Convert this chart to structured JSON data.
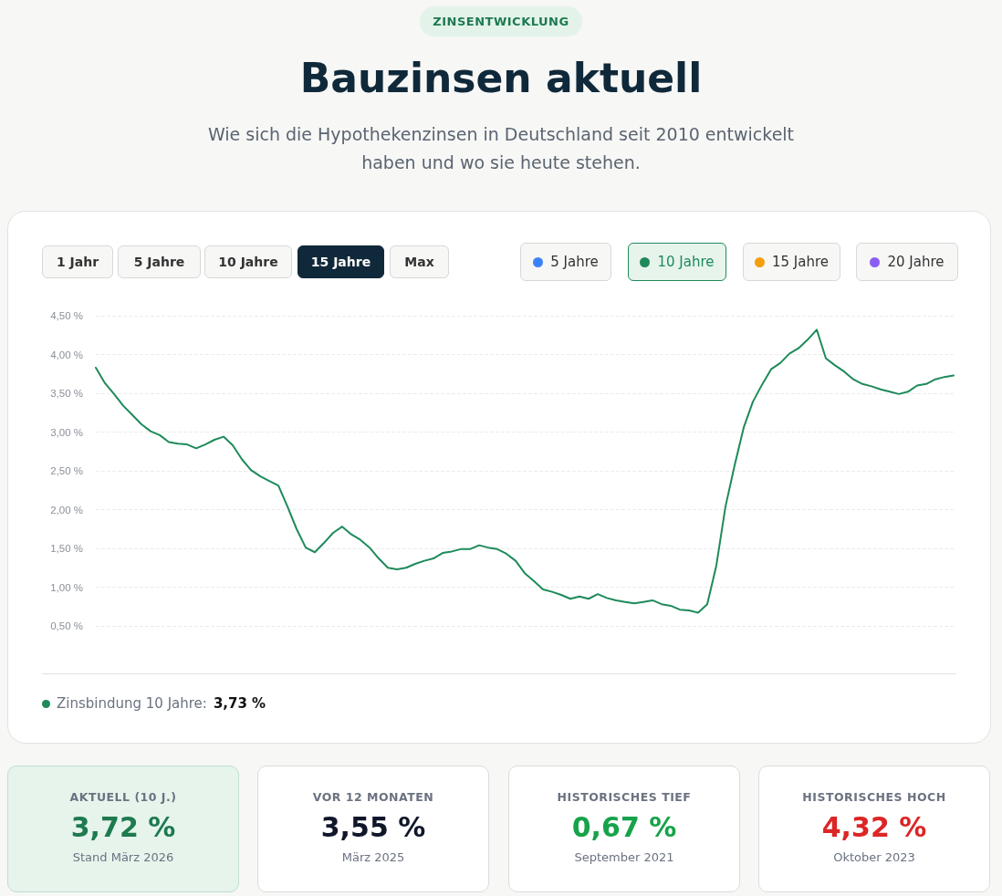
{
  "chart_data": {
    "type": "line",
    "title": "Bauzinsen aktuell",
    "subtitle": "Wie sich die Hypothekenzinsen in Deutschland seit 2010 entwickelt haben und wo sie heute stehen.",
    "categories": [
      null,
      null,
      null,
      null,
      null,
      null,
      null,
      null,
      null,
      null,
      null,
      null,
      null,
      null,
      null,
      null,
      null,
      null,
      null,
      null,
      null,
      null,
      null,
      null,
      null,
      null,
      null,
      null,
      null,
      null,
      null,
      null,
      null,
      null,
      null,
      null,
      null,
      null,
      null,
      null,
      null,
      null,
      null,
      null,
      null,
      null,
      null,
      null,
      null,
      null,
      null,
      null,
      null,
      null,
      null,
      null,
      null,
      null,
      null,
      null,
      null,
      null,
      null,
      null,
      null,
      null,
      null,
      null,
      null,
      null,
      null,
      null,
      null,
      null,
      null,
      null,
      null,
      null,
      null,
      null,
      null,
      null,
      null,
      null,
      null,
      null,
      null,
      null,
      null,
      null,
      null,
      null,
      null,
      null,
      null
    ],
    "series": [
      {
        "name": "10 Jahre",
        "color": "#1e8a5a",
        "values": [
          3.83,
          3.63,
          3.49,
          3.34,
          3.22,
          3.1,
          3.01,
          2.96,
          2.87,
          2.85,
          2.84,
          2.79,
          2.84,
          2.9,
          2.94,
          2.83,
          2.65,
          2.51,
          2.43,
          2.37,
          2.31,
          2.04,
          1.75,
          1.51,
          1.45,
          1.57,
          1.7,
          1.78,
          1.68,
          1.61,
          1.51,
          1.37,
          1.25,
          1.23,
          1.25,
          1.3,
          1.34,
          1.37,
          1.44,
          1.46,
          1.49,
          1.49,
          1.54,
          1.51,
          1.49,
          1.43,
          1.34,
          1.18,
          1.08,
          0.97,
          0.94,
          0.9,
          0.85,
          0.88,
          0.85,
          0.91,
          0.86,
          0.83,
          0.81,
          0.79,
          0.81,
          0.83,
          0.78,
          0.76,
          0.71,
          0.7,
          0.67,
          0.78,
          1.28,
          2.04,
          2.57,
          3.06,
          3.39,
          3.61,
          3.81,
          3.89,
          4.01,
          4.08,
          4.19,
          4.32,
          3.95,
          3.86,
          3.78,
          3.68,
          3.62,
          3.59,
          3.55,
          3.52,
          3.49,
          3.52,
          3.6,
          3.62,
          3.68,
          3.71,
          3.73
        ]
      }
    ],
    "ylim": [
      0.5,
      4.5
    ],
    "yticks": [
      {
        "value": 0.5,
        "label": "0,50 %"
      },
      {
        "value": 1,
        "label": "1,00 %"
      },
      {
        "value": 1.5,
        "label": "1,50 %"
      },
      {
        "value": 2,
        "label": "2,00 %"
      },
      {
        "value": 2.5,
        "label": "2,50 %"
      },
      {
        "value": 3,
        "label": "3,00 %"
      },
      {
        "value": 3.5,
        "label": "3,50 %"
      },
      {
        "value": 4,
        "label": "4,00 %"
      },
      {
        "value": 4.5,
        "label": "4,50 %"
      }
    ],
    "grid": "y",
    "tick_labels": "y",
    "legend": "top right",
    "marker": "none",
    "line_style": "solid",
    "annotations": [
      "ZINSENTWICKLUNG",
      "1 Jahr",
      "5 Jahre",
      "10 Jahre",
      "15 Jahre",
      "Max",
      "5 Jahre",
      "15 Jahre",
      "20 Jahre",
      "Zinsbindung 10 Jahre:",
      "3,73 %",
      "AKTUELL (10 J.)",
      "3,72 %",
      "Stand März 2026",
      "VOR 12 MONATEN",
      "3,55 %",
      "März 2025",
      "HISTORISCHES TIEF",
      "0,67 %",
      "September 2021",
      "HISTORISCHES HOCH",
      "4,32 %",
      "Oktober 2023"
    ]
  }
}
